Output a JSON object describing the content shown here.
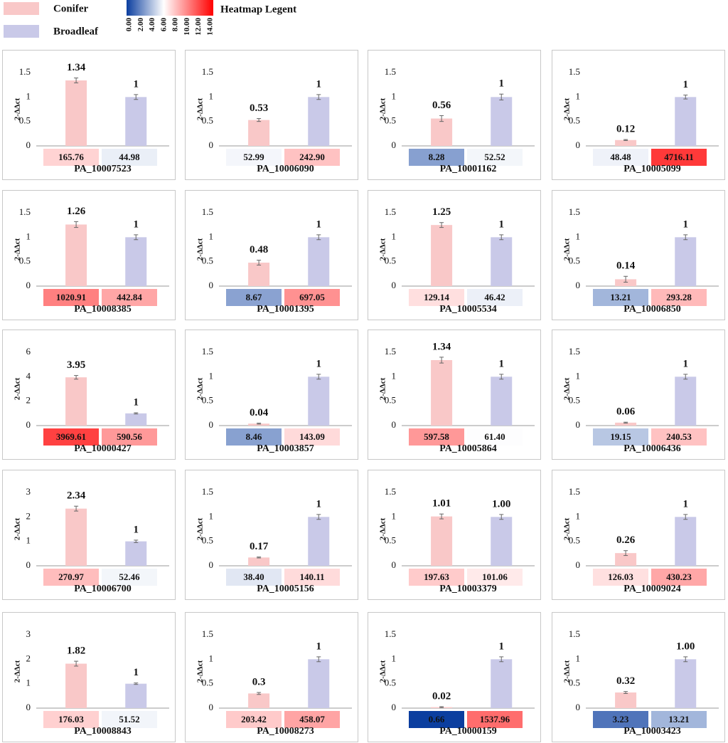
{
  "legend": {
    "series": [
      {
        "name": "Conifer",
        "color": "#f9c8c8"
      },
      {
        "name": "Broadleaf",
        "color": "#c9c9e8"
      }
    ]
  },
  "heatmap_legend": {
    "title": "Heatmap Legent",
    "lim": [
      0,
      14
    ],
    "colors": [
      "#0b3e9f",
      "#ffffff",
      "#ff0000"
    ],
    "ticks": [
      {
        "value": 0,
        "label": "0.00"
      },
      {
        "value": 2,
        "label": "2.00"
      },
      {
        "value": 4,
        "label": "4.00"
      },
      {
        "value": 6,
        "label": "6.00"
      },
      {
        "value": 8,
        "label": "8.00"
      },
      {
        "value": 10,
        "label": "10.00"
      },
      {
        "value": 12,
        "label": "12.00"
      },
      {
        "value": 14,
        "label": "14.00"
      }
    ]
  },
  "chart_data": [
    {
      "type": "bar",
      "title": "PA_10007523",
      "ylabel": "2-ΔΔct",
      "values": [
        1.34,
        1
      ],
      "errors": [
        0.05,
        0.05
      ],
      "ylim": [
        0,
        1.5
      ],
      "yticks": [
        0,
        0.5,
        1,
        1.5
      ],
      "heatmap_values": [
        165.76,
        44.98
      ]
    },
    {
      "type": "bar",
      "title": "PA_10006090",
      "ylabel": "2-ΔΔct",
      "values": [
        0.53,
        1
      ],
      "errors": [
        0.03,
        0.05
      ],
      "ylim": [
        0,
        1.5
      ],
      "yticks": [
        0,
        0.5,
        1,
        1.5
      ],
      "heatmap_values": [
        52.99,
        242.9
      ],
      "heatmap_labels": [
        "52.99",
        "242.90"
      ]
    },
    {
      "type": "bar",
      "title": "PA_10001162",
      "ylabel": "2-ΔΔct",
      "values": [
        0.56,
        1
      ],
      "errors": [
        0.06,
        0.06
      ],
      "ylim": [
        0,
        1.5
      ],
      "yticks": [
        0,
        0.5,
        1,
        1.5
      ],
      "heatmap_values": [
        8.28,
        52.52
      ]
    },
    {
      "type": "bar",
      "title": "PA_10005099",
      "ylabel": "2-ΔΔct",
      "values": [
        0.12,
        1
      ],
      "errors": [
        0.01,
        0.04
      ],
      "ylim": [
        0,
        1.5
      ],
      "yticks": [
        0,
        0.5,
        1,
        1.5
      ],
      "heatmap_values": [
        48.48,
        4716.11
      ]
    },
    {
      "type": "bar",
      "title": "PA_10008385",
      "ylabel": "2-ΔΔct",
      "values": [
        1.26,
        1
      ],
      "errors": [
        0.06,
        0.05
      ],
      "ylim": [
        0,
        1.5
      ],
      "yticks": [
        0,
        0.5,
        1,
        1.5
      ],
      "heatmap_values": [
        1020.91,
        442.84
      ]
    },
    {
      "type": "bar",
      "title": "PA_10001395",
      "ylabel": "2-ΔΔct",
      "values": [
        0.48,
        1
      ],
      "errors": [
        0.05,
        0.05
      ],
      "ylim": [
        0,
        1.5
      ],
      "yticks": [
        0,
        0.5,
        1,
        1.5
      ],
      "heatmap_values": [
        8.67,
        697.05
      ]
    },
    {
      "type": "bar",
      "title": "PA_10005534",
      "ylabel": "2-ΔΔct",
      "values": [
        1.25,
        1
      ],
      "errors": [
        0.05,
        0.05
      ],
      "ylim": [
        0,
        1.5
      ],
      "yticks": [
        0,
        0.5,
        1,
        1.5
      ],
      "heatmap_values": [
        129.14,
        46.42
      ]
    },
    {
      "type": "bar",
      "title": "PA_10006850",
      "ylabel": "2-ΔΔct",
      "values": [
        0.14,
        1
      ],
      "errors": [
        0.06,
        0.05
      ],
      "ylim": [
        0,
        1.5
      ],
      "yticks": [
        0,
        0.5,
        1,
        1.5
      ],
      "heatmap_values": [
        13.21,
        293.28
      ]
    },
    {
      "type": "bar",
      "title": "PA_10000427",
      "ylabel": "2-ΔΔct",
      "values": [
        3.95,
        1
      ],
      "errors": [
        0.15,
        0.05
      ],
      "ylim": [
        0,
        6
      ],
      "yticks": [
        0,
        2,
        4,
        6
      ],
      "heatmap_values": [
        3969.61,
        590.56
      ]
    },
    {
      "type": "bar",
      "title": "PA_10003857",
      "ylabel": "2-ΔΔct",
      "values": [
        0.04,
        1
      ],
      "errors": [
        0.01,
        0.05
      ],
      "ylim": [
        0,
        1.5
      ],
      "yticks": [
        0,
        0.5,
        1,
        1.5
      ],
      "heatmap_values": [
        8.46,
        143.09
      ]
    },
    {
      "type": "bar",
      "title": "PA_10005864",
      "ylabel": "2-ΔΔct",
      "values": [
        1.34,
        1
      ],
      "errors": [
        0.06,
        0.05
      ],
      "ylim": [
        0,
        1.5
      ],
      "yticks": [
        0,
        0.5,
        1,
        1.5
      ],
      "heatmap_values": [
        597.58,
        61.4
      ],
      "heatmap_labels": [
        "597.58",
        "61.40"
      ]
    },
    {
      "type": "bar",
      "title": "PA_10006436",
      "ylabel": "2-ΔΔct",
      "values": [
        0.06,
        1
      ],
      "errors": [
        0.01,
        0.05
      ],
      "ylim": [
        0,
        1.5
      ],
      "yticks": [
        0,
        0.5,
        1,
        1.5
      ],
      "heatmap_values": [
        19.15,
        240.53
      ]
    },
    {
      "type": "bar",
      "title": "PA_10006700",
      "ylabel": "2-ΔΔct",
      "values": [
        2.34,
        1
      ],
      "errors": [
        0.1,
        0.05
      ],
      "ylim": [
        0,
        3
      ],
      "yticks": [
        0,
        1,
        2,
        3
      ],
      "heatmap_values": [
        270.97,
        52.46
      ]
    },
    {
      "type": "bar",
      "title": "PA_10005156",
      "ylabel": "2-ΔΔct",
      "values": [
        0.17,
        1
      ],
      "errors": [
        0.01,
        0.05
      ],
      "ylim": [
        0,
        1.5
      ],
      "yticks": [
        0,
        0.5,
        1,
        1.5
      ],
      "heatmap_values": [
        38.4,
        140.11
      ],
      "heatmap_labels": [
        "38.40",
        "140.11"
      ]
    },
    {
      "type": "bar",
      "title": "PA_10003379",
      "ylabel": "2-ΔΔct",
      "values": [
        1.01,
        1
      ],
      "value_labels": [
        "1.01",
        "1.00"
      ],
      "errors": [
        0.05,
        0.05
      ],
      "ylim": [
        0,
        1.5
      ],
      "yticks": [
        0,
        0.5,
        1,
        1.5
      ],
      "heatmap_values": [
        197.63,
        101.06
      ]
    },
    {
      "type": "bar",
      "title": "PA_10009024",
      "ylabel": "2-ΔΔct",
      "values": [
        0.26,
        1
      ],
      "errors": [
        0.05,
        0.05
      ],
      "ylim": [
        0,
        1.5
      ],
      "yticks": [
        0,
        0.5,
        1,
        1.5
      ],
      "heatmap_values": [
        126.03,
        430.23
      ]
    },
    {
      "type": "bar",
      "title": "PA_10008843",
      "ylabel": "2-ΔΔct",
      "values": [
        1.82,
        1
      ],
      "errors": [
        0.1,
        0.03
      ],
      "ylim": [
        0,
        3
      ],
      "yticks": [
        0,
        1,
        2,
        3
      ],
      "heatmap_values": [
        176.03,
        51.52
      ]
    },
    {
      "type": "bar",
      "title": "PA_10008273",
      "ylabel": "2-ΔΔct",
      "values": [
        0.3,
        1
      ],
      "errors": [
        0.02,
        0.05
      ],
      "ylim": [
        0,
        1.5
      ],
      "yticks": [
        0,
        0.5,
        1,
        1.5
      ],
      "heatmap_values": [
        203.42,
        458.07
      ]
    },
    {
      "type": "bar",
      "title": "PA_10000159",
      "ylabel": "2-ΔΔct",
      "values": [
        0.02,
        1
      ],
      "errors": [
        0.01,
        0.05
      ],
      "ylim": [
        0,
        1.5
      ],
      "yticks": [
        0,
        0.5,
        1,
        1.5
      ],
      "heatmap_values": [
        0.66,
        1537.96
      ]
    },
    {
      "type": "bar",
      "title": "PA_10003423",
      "ylabel": "2-ΔΔct",
      "values": [
        0.32,
        1
      ],
      "value_labels": [
        "0.32",
        "1.00"
      ],
      "errors": [
        0.02,
        0.05
      ],
      "ylim": [
        0,
        1.5
      ],
      "yticks": [
        0,
        0.5,
        1,
        1.5
      ],
      "heatmap_values": [
        3.23,
        13.21
      ]
    }
  ]
}
